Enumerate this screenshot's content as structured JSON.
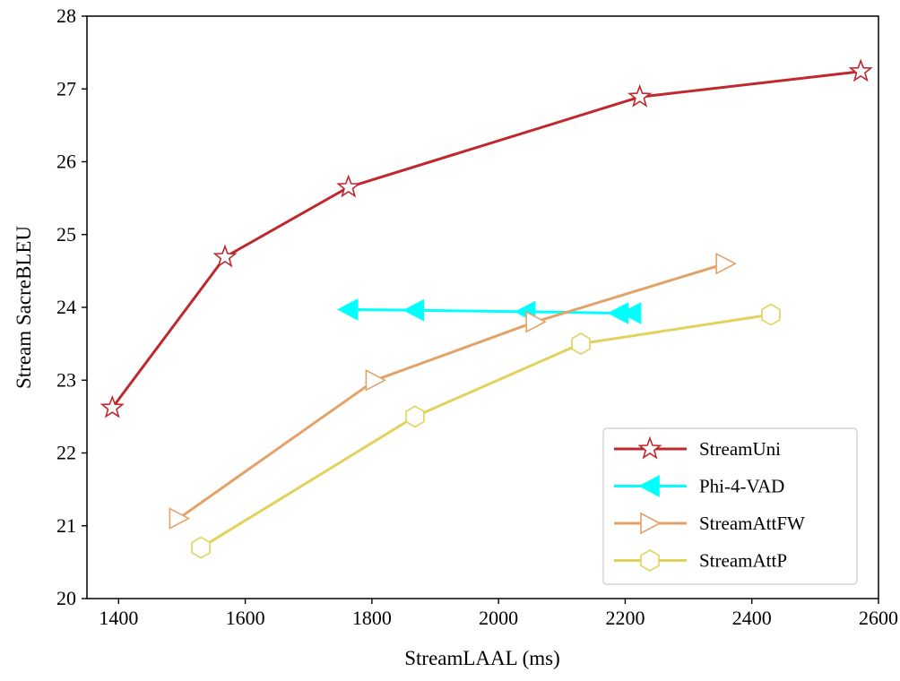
{
  "chart_data": {
    "type": "line",
    "title": "",
    "xlabel": "StreamLAAL (ms)",
    "ylabel": "Stream SacreBLEU",
    "xlim": [
      1350,
      2600
    ],
    "ylim": [
      20,
      28
    ],
    "xticks": [
      1400,
      1600,
      1800,
      2000,
      2200,
      2400,
      2600
    ],
    "yticks": [
      20,
      21,
      22,
      23,
      24,
      25,
      26,
      27,
      28
    ],
    "grid": false,
    "legend_position": "lower-right",
    "series": [
      {
        "name": "StreamUni",
        "color": "#c0282d",
        "marker": "star",
        "x": [
          1390,
          1568,
          1763,
          2223,
          2572
        ],
        "y": [
          22.62,
          24.69,
          25.65,
          26.89,
          27.24
        ]
      },
      {
        "name": "Phi-4-VAD",
        "color": "#00ffff",
        "marker": "triangle-left",
        "x": [
          1763,
          1867,
          2043,
          2190,
          2210
        ],
        "y": [
          23.97,
          23.96,
          23.94,
          23.92,
          23.92
        ]
      },
      {
        "name": "StreamAttFW",
        "color": "#e3a268",
        "marker": "triangle-right",
        "x": [
          1495,
          1805,
          2058,
          2358
        ],
        "y": [
          21.1,
          23.0,
          23.8,
          24.6
        ]
      },
      {
        "name": "StreamAttP",
        "color": "#e2d25b",
        "marker": "hexagon",
        "x": [
          1530,
          1868,
          2130,
          2430
        ],
        "y": [
          20.7,
          22.5,
          23.5,
          23.9
        ]
      }
    ]
  }
}
